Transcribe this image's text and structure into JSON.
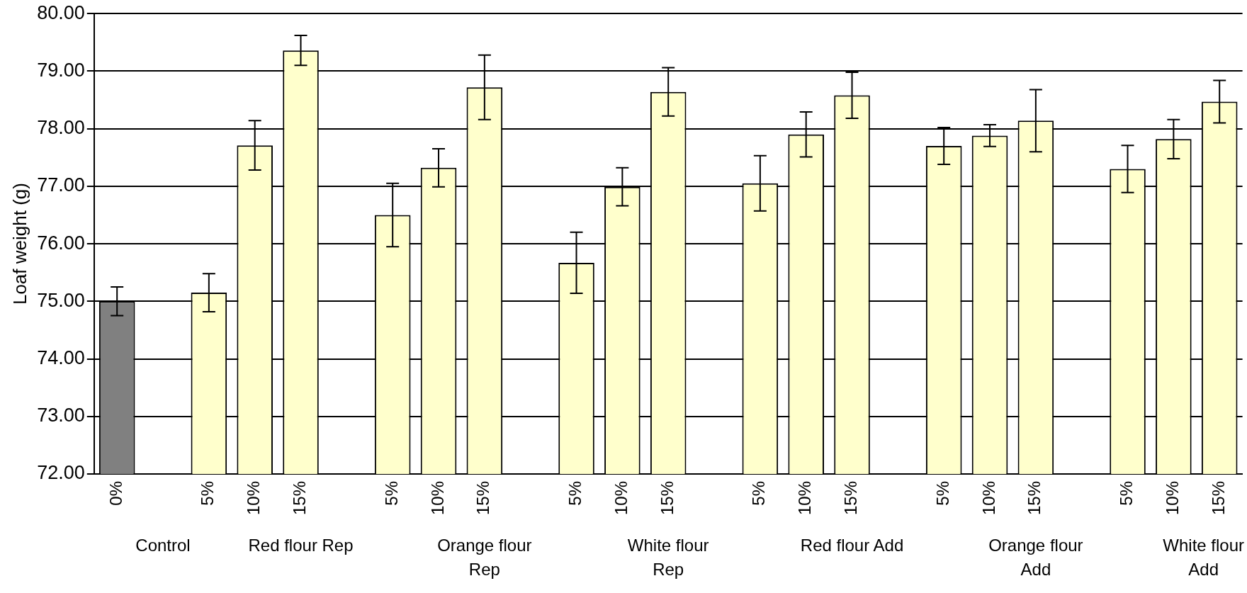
{
  "chart_data": {
    "type": "bar",
    "ylabel": "Loaf weight (g)",
    "categories": [
      "0%",
      null,
      "5%",
      "10%",
      "15%",
      null,
      "5%",
      "10%",
      "15%",
      null,
      "5%",
      "10%",
      "15%",
      null,
      "5%",
      "10%",
      "15%",
      null,
      "5%",
      "10%",
      "15%",
      null,
      "5%",
      "10%",
      "15%"
    ],
    "values": [
      75.0,
      null,
      75.15,
      77.71,
      79.36,
      null,
      76.5,
      77.32,
      78.72,
      null,
      75.67,
      76.99,
      78.64,
      null,
      77.05,
      77.9,
      78.58,
      null,
      77.7,
      77.88,
      78.14,
      null,
      77.3,
      77.82,
      78.47
    ],
    "errors": [
      0.25,
      null,
      0.33,
      0.43,
      0.26,
      null,
      0.55,
      0.33,
      0.56,
      null,
      0.53,
      0.33,
      0.42,
      null,
      0.48,
      0.39,
      0.4,
      null,
      0.32,
      0.19,
      0.54,
      null,
      0.41,
      0.34,
      0.37
    ],
    "colors": [
      "#808080",
      null,
      "#ffffcc",
      "#ffffcc",
      "#ffffcc",
      null,
      "#ffffcc",
      "#ffffcc",
      "#ffffcc",
      null,
      "#ffffcc",
      "#ffffcc",
      "#ffffcc",
      null,
      "#ffffcc",
      "#ffffcc",
      "#ffffcc",
      null,
      "#ffffcc",
      "#ffffcc",
      "#ffffcc",
      null,
      "#ffffcc",
      "#ffffcc",
      "#ffffcc"
    ],
    "ylim": [
      72,
      80
    ],
    "yticks": [
      {
        "value": 72,
        "label": "72.00"
      },
      {
        "value": 73,
        "label": "73.00"
      },
      {
        "value": 74,
        "label": "74.00"
      },
      {
        "value": 75,
        "label": "75.00"
      },
      {
        "value": 76,
        "label": "76.00"
      },
      {
        "value": 77,
        "label": "77.00"
      },
      {
        "value": 78,
        "label": "78.00"
      },
      {
        "value": 79,
        "label": "79.00"
      },
      {
        "value": 80,
        "label": "80.00"
      }
    ],
    "grid": "y",
    "legend": false,
    "annotations": [
      "Control",
      "Red flour Rep",
      "Orange flour Rep",
      "White flour Rep",
      "Red flour Add",
      "Orange flour Add",
      "White flour Add"
    ]
  }
}
